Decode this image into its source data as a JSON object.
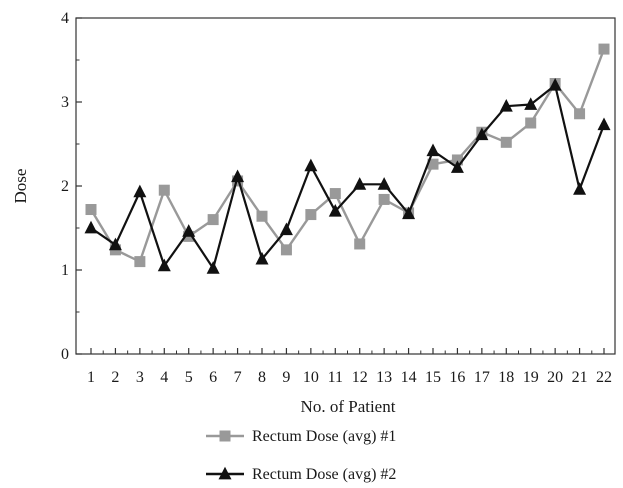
{
  "chart_data": {
    "type": "line",
    "xlabel": "No. of Patient",
    "ylabel": "Dose",
    "x": [
      1,
      2,
      3,
      4,
      5,
      6,
      7,
      8,
      9,
      10,
      11,
      12,
      13,
      14,
      15,
      16,
      17,
      18,
      19,
      20,
      21,
      22
    ],
    "ylim": [
      0,
      4
    ],
    "yticks": [
      0,
      1,
      2,
      3,
      4
    ],
    "grid": false,
    "legend_position": "bottom-center",
    "series": [
      {
        "name": "Rectum Dose (avg) #1",
        "marker": "square",
        "color": "#999999",
        "values": [
          1.72,
          1.24,
          1.1,
          1.95,
          1.4,
          1.6,
          2.06,
          1.64,
          1.24,
          1.66,
          1.91,
          1.31,
          1.84,
          1.68,
          2.26,
          2.31,
          2.64,
          2.52,
          2.75,
          3.22,
          2.86,
          3.63
        ]
      },
      {
        "name": "Rectum Dose (avg) #2",
        "marker": "triangle",
        "color": "#111111",
        "values": [
          1.5,
          1.3,
          1.93,
          1.05,
          1.46,
          1.02,
          2.11,
          1.13,
          1.48,
          2.24,
          1.7,
          2.02,
          2.02,
          1.67,
          2.42,
          2.22,
          2.61,
          2.95,
          2.97,
          3.2,
          1.96,
          2.73
        ]
      }
    ]
  }
}
